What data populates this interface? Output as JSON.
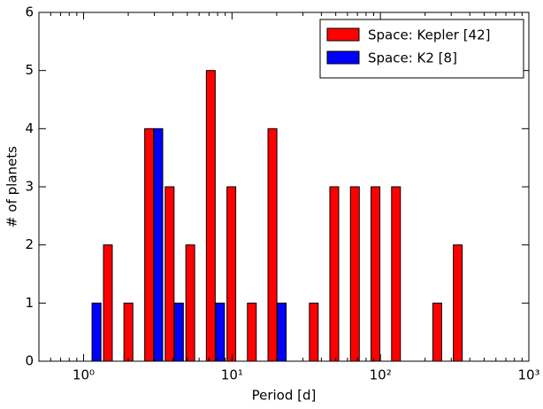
{
  "chart_data": {
    "type": "histogram",
    "x_label": "Period [d]",
    "y_label": "# of planets",
    "bins": [
      0.97,
      1.34,
      1.84,
      2.54,
      3.49,
      4.81,
      6.61,
      9.1,
      12.5,
      17.2,
      23.7,
      32.7,
      44.9,
      61.8,
      85.1,
      117,
      161,
      222,
      305,
      420
    ],
    "series": [
      {
        "name": "Space: Kepler [42]",
        "color": "#ff0000",
        "values": [
          0,
          2,
          1,
          4,
          3,
          2,
          5,
          3,
          1,
          4,
          0,
          1,
          3,
          3,
          3,
          3,
          0,
          1,
          2
        ]
      },
      {
        "name": "Space: K2 [8]",
        "color": "#0000ff",
        "values": [
          1,
          0,
          0,
          4,
          1,
          0,
          1,
          0,
          0,
          1,
          0,
          0,
          0,
          0,
          0,
          0,
          0,
          0,
          0
        ]
      }
    ],
    "xscale": "log",
    "xlim": [
      0.5,
      1000
    ],
    "xticks": [
      {
        "value": 1,
        "label": "10⁰"
      },
      {
        "value": 10,
        "label": "10¹"
      },
      {
        "value": 100,
        "label": "10²"
      },
      {
        "value": 1000,
        "label": "10³"
      }
    ],
    "xminorticks": [
      0.6,
      0.7,
      0.8,
      0.9,
      2,
      3,
      4,
      5,
      6,
      7,
      8,
      9,
      20,
      30,
      40,
      50,
      60,
      70,
      80,
      90,
      200,
      300,
      400,
      500,
      600,
      700,
      800,
      900
    ],
    "ylim": [
      0,
      6
    ],
    "yticks": [
      0,
      1,
      2,
      3,
      4,
      5,
      6
    ],
    "legend": "upper right"
  }
}
